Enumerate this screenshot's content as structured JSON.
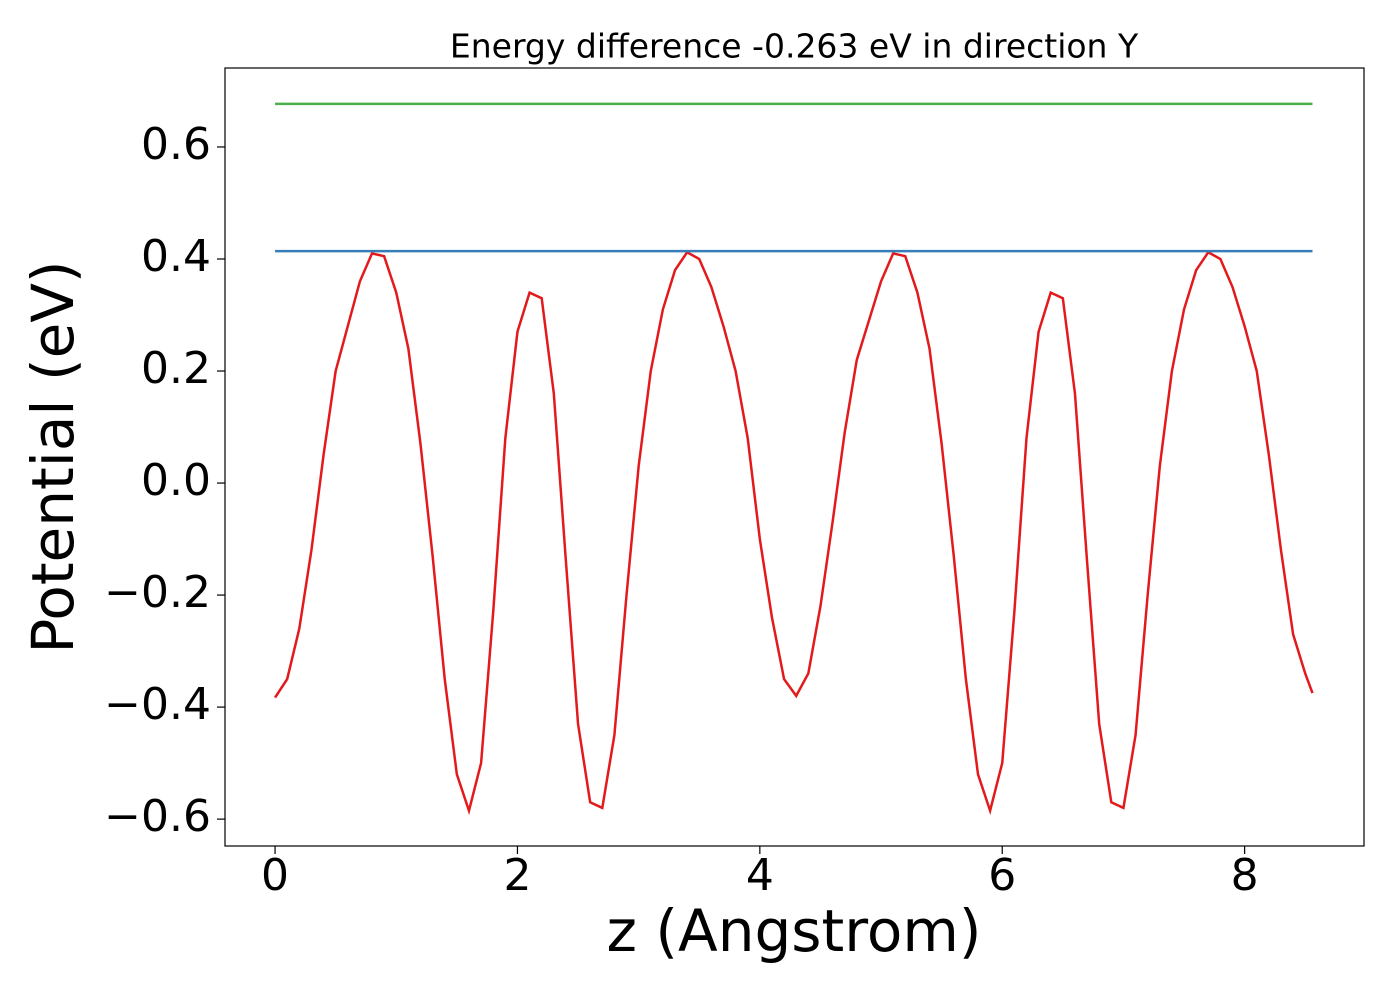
{
  "chart_data": {
    "type": "line",
    "title": "Energy difference -0.263 eV in direction Y",
    "x_label": "z (Angstrom)",
    "y_label": "Potential (eV)",
    "xlim": [
      -0.413,
      8.985
    ],
    "ylim": [
      -0.648,
      0.741
    ],
    "xticks": [
      0,
      2,
      4,
      6,
      8
    ],
    "yticks": [
      {
        "value": -0.6,
        "label": "−0.6"
      },
      {
        "value": -0.4,
        "label": "−0.4"
      },
      {
        "value": -0.2,
        "label": "−0.2"
      },
      {
        "value": 0,
        "label": "0.0"
      },
      0.2,
      0.4,
      0.6
    ],
    "series": [
      {
        "color": "#e31a1c",
        "x": [
          0,
          0.1,
          0.2,
          0.3,
          0.4,
          0.5,
          0.6,
          0.7,
          0.8,
          0.9,
          1.0,
          1.1,
          1.2,
          1.3,
          1.4,
          1.5,
          1.6,
          1.7,
          1.8,
          1.9,
          2.0,
          2.1,
          2.2,
          2.3,
          2.4,
          2.5,
          2.6,
          2.7,
          2.8,
          2.9,
          3.0,
          3.1,
          3.2,
          3.3,
          3.4,
          3.5,
          3.6,
          3.7,
          3.8,
          3.9,
          4.0,
          4.1,
          4.2,
          4.3,
          4.4,
          4.5,
          4.6,
          4.7,
          4.8,
          4.9,
          5.0,
          5.1,
          5.2,
          5.3,
          5.4,
          5.5,
          5.6,
          5.7,
          5.8,
          5.9,
          6.0,
          6.1,
          6.2,
          6.3,
          6.4,
          6.5,
          6.6,
          6.7,
          6.8,
          6.9,
          7.0,
          7.1,
          7.2,
          7.3,
          7.4,
          7.5,
          7.6,
          7.7,
          7.8,
          7.9,
          8.0,
          8.1,
          8.2,
          8.3,
          8.4,
          8.5,
          8.56
        ],
        "values": [
          -0.383,
          -0.35,
          -0.26,
          -0.12,
          0.05,
          0.2,
          0.28,
          0.36,
          0.41,
          0.405,
          0.34,
          0.24,
          0.07,
          -0.13,
          -0.35,
          -0.52,
          -0.585,
          -0.5,
          -0.23,
          0.08,
          0.27,
          0.34,
          0.33,
          0.16,
          -0.14,
          -0.43,
          -0.57,
          -0.58,
          -0.45,
          -0.2,
          0.03,
          0.2,
          0.31,
          0.38,
          0.412,
          0.4,
          0.35,
          0.28,
          0.2,
          0.08,
          -0.1,
          -0.24,
          -0.35,
          -0.38,
          -0.34,
          -0.22,
          -0.07,
          0.09,
          0.22,
          0.29,
          0.36,
          0.41,
          0.405,
          0.34,
          0.24,
          0.07,
          -0.13,
          -0.35,
          -0.52,
          -0.585,
          -0.5,
          -0.23,
          0.08,
          0.27,
          0.34,
          0.33,
          0.16,
          -0.14,
          -0.43,
          -0.57,
          -0.58,
          -0.45,
          -0.2,
          0.03,
          0.2,
          0.31,
          0.38,
          0.412,
          0.4,
          0.35,
          0.28,
          0.2,
          0.05,
          -0.12,
          -0.27,
          -0.34,
          -0.375
        ]
      },
      {
        "color": "#377eb8",
        "x": [
          0,
          8.56
        ],
        "values": [
          0.414,
          0.414
        ]
      },
      {
        "color": "#4daf4a",
        "x": [
          0,
          8.56
        ],
        "values": [
          0.677,
          0.677
        ]
      }
    ]
  }
}
